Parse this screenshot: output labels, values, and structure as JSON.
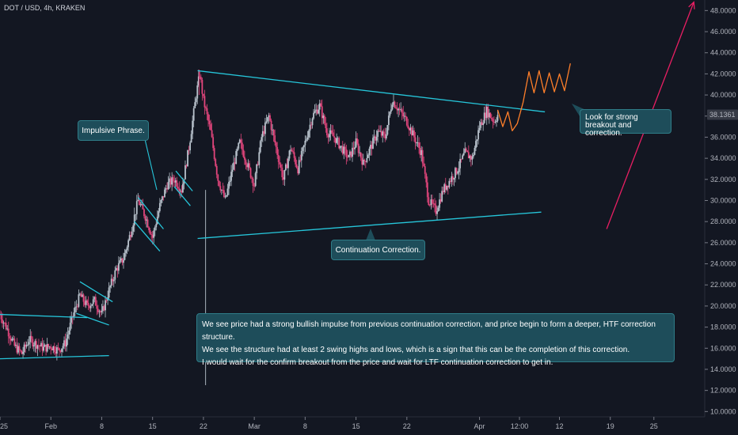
{
  "header": {
    "title": "DOT / USD, 4h, KRAKEN"
  },
  "price_badge": "38.1361",
  "annotations": {
    "impulsive": "Impulsive Phrase.",
    "continuation": "Continuation Correction.",
    "breakout": "Look for strong breakout and correction.",
    "analysis": [
      "We see price had a strong bullish impulse from previous continuation correction, and price begin to form a deeper, HTF correction structure.",
      "We see the structure had at least 2 swing highs and lows, which is a sign that this can be the completion of this correction.",
      "I would wait for the confirm breakout from the price and wait for LTF continuation correction to get in."
    ]
  },
  "colors": {
    "background": "#131722",
    "up_candle": "#b8c2cc",
    "down_candle": "#e0457b",
    "trendline": "#26c6da",
    "projection": "#ff7f2a",
    "arrow": "#e91e63",
    "callout_bg": "#1e4d5a",
    "callout_border": "#2f7d88"
  },
  "chart_data": {
    "type": "candlestick",
    "symbol": "DOT / USD",
    "timeframe": "4h",
    "exchange": "KRAKEN",
    "y_axis": {
      "ticks": [
        "48.0000",
        "46.0000",
        "44.0000",
        "42.0000",
        "40.0000",
        "38.0000",
        "36.0000",
        "34.0000",
        "32.0000",
        "30.0000",
        "28.0000",
        "26.0000",
        "24.0000",
        "22.0000",
        "20.0000",
        "18.0000",
        "16.0000",
        "14.0000",
        "12.0000",
        "10.0000"
      ],
      "range": [
        9.5,
        49
      ]
    },
    "x_axis": {
      "ticks": [
        {
          "label": "25",
          "day": -7
        },
        {
          "label": "Feb",
          "day": 0
        },
        {
          "label": "8",
          "day": 7
        },
        {
          "label": "15",
          "day": 14
        },
        {
          "label": "22",
          "day": 21
        },
        {
          "label": "Mar",
          "day": 28
        },
        {
          "label": "8",
          "day": 35
        },
        {
          "label": "15",
          "day": 42
        },
        {
          "label": "22",
          "day": 49
        },
        {
          "label": "Apr",
          "day": 59
        },
        {
          "label": "12:00",
          "day": 64.5
        },
        {
          "label": "12",
          "day": 70
        },
        {
          "label": "19",
          "day": 77
        },
        {
          "label": "25",
          "day": 83
        }
      ],
      "range": [
        -7,
        90
      ]
    },
    "price_path": [
      {
        "day": -7,
        "price": 19.2
      },
      {
        "day": -6,
        "price": 17.8
      },
      {
        "day": -5,
        "price": 16.2
      },
      {
        "day": -4,
        "price": 15.5
      },
      {
        "day": -3,
        "price": 16.8
      },
      {
        "day": -2,
        "price": 16.4
      },
      {
        "day": -1,
        "price": 16.0
      },
      {
        "day": 0,
        "price": 16.2
      },
      {
        "day": 1,
        "price": 15.8
      },
      {
        "day": 2,
        "price": 16.5
      },
      {
        "day": 3,
        "price": 19.0
      },
      {
        "day": 4,
        "price": 21.0
      },
      {
        "day": 5,
        "price": 20.0
      },
      {
        "day": 6,
        "price": 20.5
      },
      {
        "day": 7,
        "price": 19.2
      },
      {
        "day": 8,
        "price": 21.5
      },
      {
        "day": 9,
        "price": 23.5
      },
      {
        "day": 10,
        "price": 24.5
      },
      {
        "day": 11,
        "price": 27.0
      },
      {
        "day": 12,
        "price": 30.0
      },
      {
        "day": 13,
        "price": 28.5
      },
      {
        "day": 14,
        "price": 26.5
      },
      {
        "day": 15,
        "price": 29.5
      },
      {
        "day": 16,
        "price": 31.5
      },
      {
        "day": 17,
        "price": 32.0
      },
      {
        "day": 18,
        "price": 31.0
      },
      {
        "day": 19,
        "price": 35.0
      },
      {
        "day": 20,
        "price": 40.0
      },
      {
        "day": 20.5,
        "price": 42.0
      },
      {
        "day": 21,
        "price": 39.5
      },
      {
        "day": 22,
        "price": 36.5
      },
      {
        "day": 23,
        "price": 32.0
      },
      {
        "day": 24,
        "price": 30.0
      },
      {
        "day": 25,
        "price": 33.0
      },
      {
        "day": 26,
        "price": 35.5
      },
      {
        "day": 27,
        "price": 33.5
      },
      {
        "day": 28,
        "price": 31.5
      },
      {
        "day": 29,
        "price": 36.0
      },
      {
        "day": 30,
        "price": 38.0
      },
      {
        "day": 31,
        "price": 35.0
      },
      {
        "day": 32,
        "price": 32.0
      },
      {
        "day": 33,
        "price": 35.0
      },
      {
        "day": 34,
        "price": 33.0
      },
      {
        "day": 35,
        "price": 35.5
      },
      {
        "day": 36,
        "price": 38.0
      },
      {
        "day": 37,
        "price": 39.0
      },
      {
        "day": 38,
        "price": 36.5
      },
      {
        "day": 39,
        "price": 36.0
      },
      {
        "day": 40,
        "price": 35.0
      },
      {
        "day": 41,
        "price": 34.0
      },
      {
        "day": 42,
        "price": 35.5
      },
      {
        "day": 43,
        "price": 33.5
      },
      {
        "day": 44,
        "price": 35.0
      },
      {
        "day": 45,
        "price": 36.5
      },
      {
        "day": 46,
        "price": 36.0
      },
      {
        "day": 47,
        "price": 39.5
      },
      {
        "day": 48,
        "price": 38.5
      },
      {
        "day": 49,
        "price": 37.5
      },
      {
        "day": 50,
        "price": 36.0
      },
      {
        "day": 51,
        "price": 34.5
      },
      {
        "day": 52,
        "price": 30.0
      },
      {
        "day": 53,
        "price": 29.0
      },
      {
        "day": 54,
        "price": 31.0
      },
      {
        "day": 55,
        "price": 32.0
      },
      {
        "day": 56,
        "price": 33.0
      },
      {
        "day": 57,
        "price": 34.5
      },
      {
        "day": 58,
        "price": 34.0
      },
      {
        "day": 59,
        "price": 37.0
      },
      {
        "day": 60,
        "price": 38.5
      },
      {
        "day": 61,
        "price": 37.5
      },
      {
        "day": 61.5,
        "price": 38.1
      }
    ],
    "price_extremes": {
      "low_wick": {
        "day": 21.3,
        "price": 12.5
      },
      "high_wick": {
        "day": 20.4,
        "price": 42.4
      }
    },
    "trendlines": [
      {
        "name": "triangle-upper",
        "p1": {
          "day": 20.2,
          "price": 42.3
        },
        "p2": {
          "day": 68,
          "price": 38.4
        }
      },
      {
        "name": "triangle-lower",
        "p1": {
          "day": 20.2,
          "price": 26.4
        },
        "p2": {
          "day": 67.5,
          "price": 28.9
        }
      },
      {
        "name": "range-top",
        "p1": {
          "day": -7,
          "price": 19.2
        },
        "p2": {
          "day": 5,
          "price": 18.9
        }
      },
      {
        "name": "range-bottom",
        "p1": {
          "day": -7,
          "price": 15.0
        },
        "p2": {
          "day": 8,
          "price": 15.3
        }
      },
      {
        "name": "flag1-top",
        "p1": {
          "day": 4,
          "price": 22.3
        },
        "p2": {
          "day": 8.5,
          "price": 20.4
        }
      },
      {
        "name": "flag1-bottom",
        "p1": {
          "day": 3.5,
          "price": 19.3
        },
        "p2": {
          "day": 8,
          "price": 18.2
        }
      },
      {
        "name": "flag2-top",
        "p1": {
          "day": 12,
          "price": 30.3
        },
        "p2": {
          "day": 15.5,
          "price": 27.3
        }
      },
      {
        "name": "flag2-bottom",
        "p1": {
          "day": 11.5,
          "price": 28.0
        },
        "p2": {
          "day": 15,
          "price": 25.2
        }
      },
      {
        "name": "flag3-top",
        "p1": {
          "day": 17.2,
          "price": 32.8
        },
        "p2": {
          "day": 19.5,
          "price": 30.9
        }
      },
      {
        "name": "flag3-bottom",
        "p1": {
          "day": 17,
          "price": 31.3
        },
        "p2": {
          "day": 19.2,
          "price": 29.5
        }
      }
    ],
    "projection": [
      {
        "day": 61.5,
        "price": 38.6
      },
      {
        "day": 62.2,
        "price": 37.0
      },
      {
        "day": 62.9,
        "price": 38.4
      },
      {
        "day": 63.5,
        "price": 36.6
      },
      {
        "day": 64.2,
        "price": 37.3
      },
      {
        "day": 65,
        "price": 39.3
      },
      {
        "day": 65.8,
        "price": 42.2
      },
      {
        "day": 66.5,
        "price": 40.2
      },
      {
        "day": 67.2,
        "price": 42.3
      },
      {
        "day": 67.9,
        "price": 40.2
      },
      {
        "day": 68.6,
        "price": 42.1
      },
      {
        "day": 69.3,
        "price": 40.3
      },
      {
        "day": 70,
        "price": 42.0
      },
      {
        "day": 70.7,
        "price": 40.4
      },
      {
        "day": 71.5,
        "price": 43.0
      }
    ],
    "arrow": {
      "from": {
        "day": 76.5,
        "price": 27.3
      },
      "to": {
        "day": 88.5,
        "price": 48.8
      }
    },
    "last_price": 38.1361
  }
}
